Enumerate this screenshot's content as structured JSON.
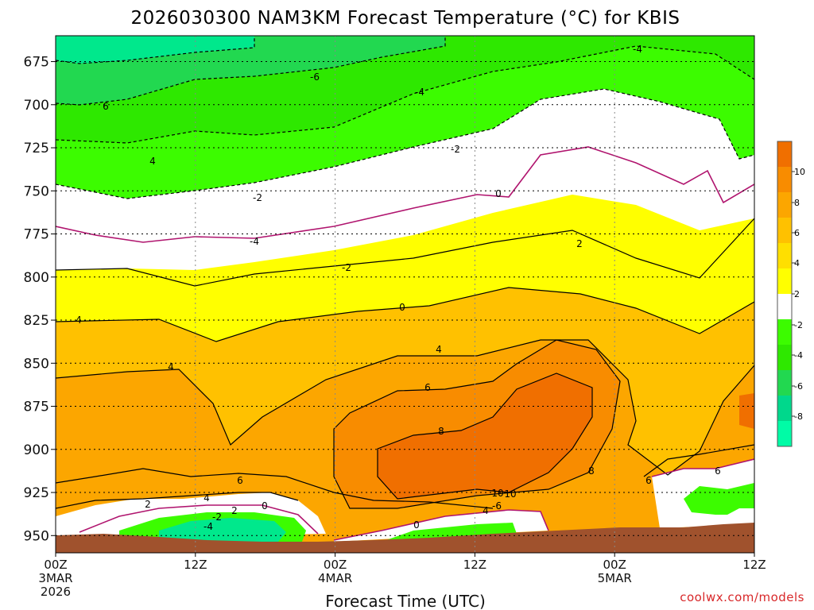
{
  "chart_data": {
    "type": "heatmap",
    "title": "2026030300 NAM3KM Forecast Temperature (°C) for KBIS",
    "xlabel": "Forecast Time (UTC)",
    "ylabel": "",
    "ylim": [
      960,
      660
    ],
    "y_ticks": [
      "675",
      "700",
      "725",
      "750",
      "775",
      "800",
      "825",
      "850",
      "875",
      "900",
      "925",
      "950"
    ],
    "x_ticks": [
      {
        "label": "00Z",
        "sub": [
          "3MAR",
          "2026"
        ]
      },
      {
        "label": "12Z",
        "sub": []
      },
      {
        "label": "00Z",
        "sub": [
          "4MAR"
        ]
      },
      {
        "label": "12Z",
        "sub": []
      },
      {
        "label": "00Z",
        "sub": [
          "5MAR"
        ]
      },
      {
        "label": "12Z",
        "sub": []
      }
    ],
    "colorbar": {
      "labels": [
        "10",
        "8",
        "6",
        "4",
        "2",
        "-2",
        "-4",
        "-6",
        "-8"
      ],
      "colors": [
        "#f06f00",
        "#f88c00",
        "#fca600",
        "#ffc100",
        "#ffdf00",
        "#ffff00",
        "#ffffff",
        "#3cfc00",
        "#2ee800",
        "#22d850",
        "#00d88c",
        "#00fca6"
      ]
    },
    "contour_labels": [
      "-4",
      "-6",
      "6",
      "-4",
      "4",
      "-2",
      "-2",
      "-4",
      "0",
      "-2",
      "0",
      "2",
      "4",
      "4",
      "4",
      "6",
      "6",
      "8",
      "10",
      "8",
      "6",
      "2",
      "4",
      "2",
      "0",
      "-2",
      "-4",
      "10",
      "-6",
      "4",
      "0",
      "6"
    ],
    "series": [
      {
        "name": "temperature_C",
        "pressure_hPa": [
          950,
          900,
          850,
          800,
          750,
          700,
          675
        ],
        "values_at_00Z3MAR": [
          1,
          4,
          5,
          3,
          -1,
          -5,
          -7
        ],
        "values_at_00Z4MAR": [
          2,
          6,
          6,
          3,
          0,
          -4,
          -6
        ],
        "values_at_18Z4MAR": [
          6,
          11,
          9,
          5,
          2,
          -2,
          -4
        ]
      }
    ]
  },
  "footer": {
    "credit": "coolwx.com/models"
  }
}
